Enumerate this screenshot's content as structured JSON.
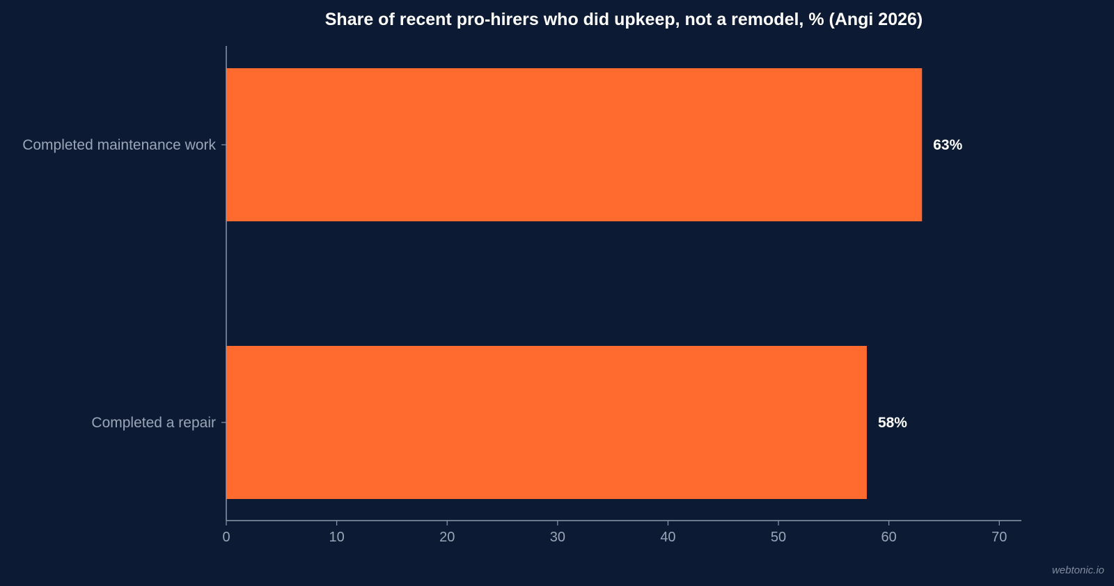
{
  "chart_data": {
    "type": "bar",
    "orientation": "horizontal",
    "title": "Share of recent pro-hirers who did upkeep, not a remodel, % (Angi 2026)",
    "categories": [
      "Completed maintenance work",
      "Completed a repair"
    ],
    "values": [
      63,
      58
    ],
    "value_labels": [
      "63%",
      "58%"
    ],
    "xlim": [
      0,
      72
    ],
    "xticks": [
      0,
      10,
      20,
      30,
      40,
      50,
      60,
      70
    ],
    "xtick_labels": [
      "0",
      "10",
      "20",
      "30",
      "40",
      "50",
      "60",
      "70"
    ],
    "xlabel": "",
    "ylabel": "",
    "grid": false,
    "legend": "none",
    "colors": {
      "background": "#0c1b33",
      "bar": "#ff6b2f",
      "axis": "#8d99ab",
      "label": "#9aa6b8",
      "title": "#ffffff"
    }
  },
  "watermark": "webtonic.io"
}
